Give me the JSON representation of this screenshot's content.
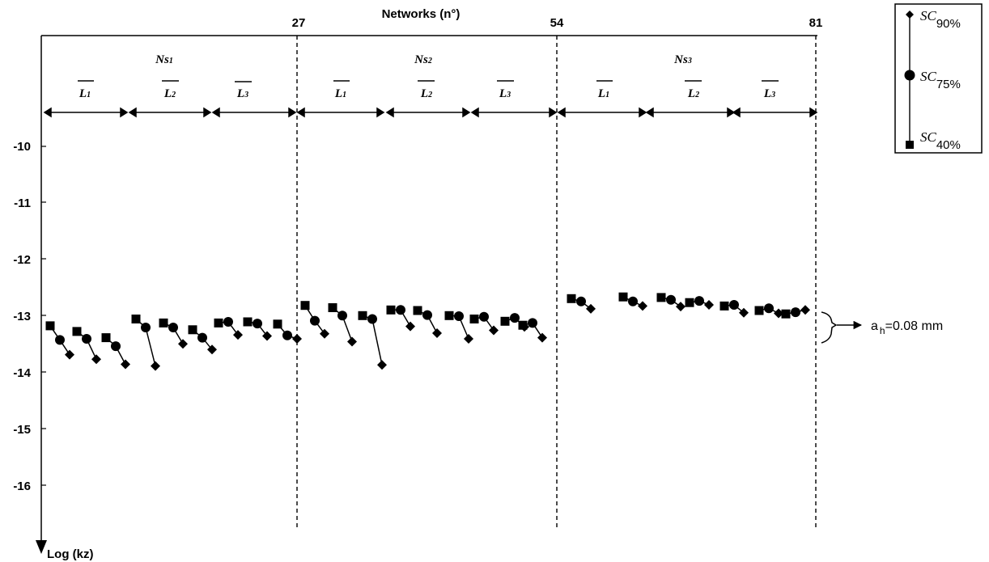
{
  "chart_data": {
    "type": "scatter",
    "title": "",
    "xlabel": "Networks (n°)",
    "ylabel": "Log (kz)",
    "x_range": [
      0,
      81
    ],
    "ylim": [
      -9,
      -17
    ],
    "x_ticks": [
      "27",
      "54",
      "81"
    ],
    "y_ticks": [
      "-10",
      "-11",
      "-12",
      "-13",
      "-14",
      "-15",
      "-16"
    ],
    "section_groups": [
      {
        "base": "Ns",
        "sub": "1"
      },
      {
        "base": "Ns",
        "sub": "2"
      },
      {
        "base": "Ns",
        "sub": "3"
      }
    ],
    "segment_labels": [
      {
        "base": "L",
        "sub": "1"
      },
      {
        "base": "L",
        "sub": "2"
      },
      {
        "base": "L",
        "sub": "3"
      }
    ],
    "legend": [
      {
        "label": "SC",
        "sub": "90%",
        "marker": "diamond"
      },
      {
        "label": "SC",
        "sub": "75%",
        "marker": "circle"
      },
      {
        "label": "SC",
        "sub": "40%",
        "marker": "square"
      }
    ],
    "annotation": {
      "prefix": "a",
      "sub": "h",
      "text": "=0.08 mm"
    },
    "triplets": [
      [
        -13.17,
        -13.42,
        -13.68
      ],
      [
        -13.27,
        -13.4,
        -13.76
      ],
      [
        -13.38,
        -13.53,
        -13.85
      ],
      [
        -13.05,
        -13.2,
        -13.88
      ],
      [
        -13.12,
        -13.2,
        -13.49
      ],
      [
        -13.24,
        -13.38,
        -13.59
      ],
      [
        -13.12,
        -13.1,
        -13.33
      ],
      [
        -13.1,
        -13.13,
        -13.35
      ],
      [
        -13.14,
        -13.34,
        -13.4
      ],
      [
        -12.81,
        -13.08,
        -13.31
      ],
      [
        -12.85,
        -12.99,
        -13.45
      ],
      [
        -12.99,
        -13.05,
        -13.86
      ],
      [
        -12.89,
        -12.89,
        -13.18
      ],
      [
        -12.9,
        -12.98,
        -13.3
      ],
      [
        -12.99,
        -13.0,
        -13.4
      ],
      [
        -13.05,
        -13.01,
        -13.25
      ],
      [
        -13.09,
        -13.03,
        -13.19
      ],
      [
        -13.16,
        -13.12,
        -13.38
      ],
      [
        -12.69,
        -12.74,
        -12.87
      ],
      [
        -12.66,
        -12.74,
        -12.82
      ],
      [
        -12.67,
        -12.71,
        -12.83
      ],
      [
        -12.76,
        -12.73,
        -12.8
      ],
      [
        -12.82,
        -12.8,
        -12.94
      ],
      [
        -12.9,
        -12.86,
        -12.95
      ],
      [
        -12.96,
        -12.93,
        -12.89
      ]
    ]
  }
}
